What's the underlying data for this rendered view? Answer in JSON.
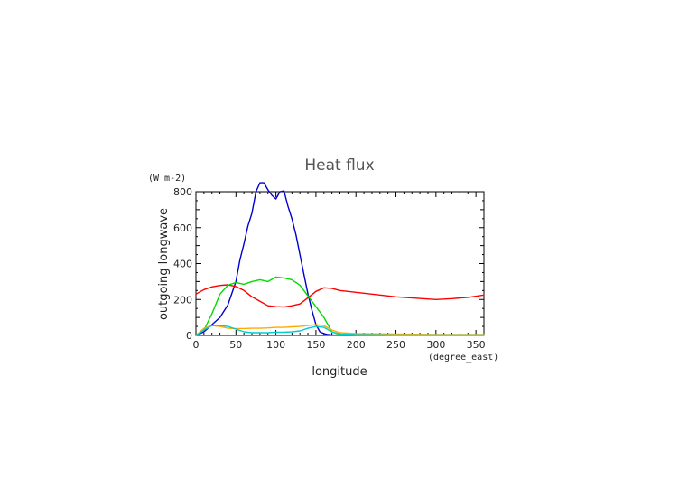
{
  "chart_data": {
    "type": "line",
    "title": "Heat flux",
    "xlabel": "longitude",
    "xunit": "(degree_east)",
    "ylabel": "outgoing longwave",
    "yunit": "(W m-2)",
    "xlim": [
      0,
      360
    ],
    "ylim": [
      0,
      800
    ],
    "xticks_major": [
      0,
      50,
      100,
      150,
      200,
      250,
      300,
      350
    ],
    "xticks_minor_step": 10,
    "yticks_major": [
      0,
      200,
      400,
      600,
      800
    ],
    "yticks_minor_step": 100,
    "grid": false,
    "series": [
      {
        "color": "#0000cc",
        "x": [
          0,
          10,
          20,
          30,
          40,
          50,
          55,
          60,
          65,
          70,
          75,
          80,
          85,
          90,
          95,
          100,
          105,
          110,
          115,
          120,
          125,
          130,
          135,
          140,
          145,
          150,
          155,
          160,
          165,
          170,
          180,
          200,
          250,
          300,
          360
        ],
        "y": [
          0,
          20,
          60,
          100,
          170,
          300,
          420,
          510,
          610,
          680,
          800,
          850,
          850,
          810,
          780,
          760,
          800,
          805,
          720,
          650,
          560,
          450,
          340,
          230,
          140,
          60,
          20,
          10,
          5,
          3,
          2,
          2,
          2,
          2,
          2
        ]
      },
      {
        "color": "#ff0000",
        "x": [
          0,
          10,
          20,
          30,
          40,
          50,
          60,
          70,
          80,
          90,
          100,
          110,
          120,
          130,
          140,
          150,
          160,
          170,
          180,
          200,
          250,
          300,
          320,
          340,
          360
        ],
        "y": [
          230,
          255,
          270,
          278,
          282,
          272,
          250,
          215,
          190,
          165,
          160,
          158,
          165,
          175,
          210,
          245,
          265,
          262,
          250,
          240,
          215,
          200,
          205,
          212,
          225
        ]
      },
      {
        "color": "#00dd00",
        "x": [
          0,
          10,
          20,
          30,
          40,
          50,
          60,
          70,
          80,
          90,
          100,
          110,
          120,
          130,
          140,
          150,
          160,
          170,
          180,
          200,
          250,
          300,
          360
        ],
        "y": [
          0,
          30,
          120,
          230,
          280,
          295,
          285,
          300,
          310,
          300,
          325,
          320,
          310,
          280,
          220,
          160,
          100,
          20,
          5,
          3,
          2,
          2,
          2
        ]
      },
      {
        "color": "#ffaa00",
        "x": [
          0,
          10,
          20,
          30,
          40,
          50,
          60,
          70,
          80,
          90,
          100,
          110,
          120,
          130,
          140,
          150,
          160,
          170,
          180,
          200,
          250,
          300,
          360
        ],
        "y": [
          0,
          40,
          55,
          50,
          40,
          38,
          38,
          40,
          40,
          42,
          45,
          45,
          48,
          50,
          55,
          60,
          55,
          30,
          15,
          10,
          8,
          5,
          5
        ]
      },
      {
        "color": "#00cccc",
        "x": [
          0,
          10,
          20,
          30,
          40,
          50,
          60,
          70,
          80,
          90,
          100,
          110,
          120,
          130,
          140,
          150,
          160,
          170,
          180,
          200,
          250,
          300,
          360
        ],
        "y": [
          0,
          30,
          55,
          55,
          50,
          35,
          20,
          15,
          15,
          15,
          18,
          18,
          20,
          25,
          40,
          50,
          45,
          20,
          8,
          5,
          3,
          3,
          3
        ]
      }
    ]
  }
}
